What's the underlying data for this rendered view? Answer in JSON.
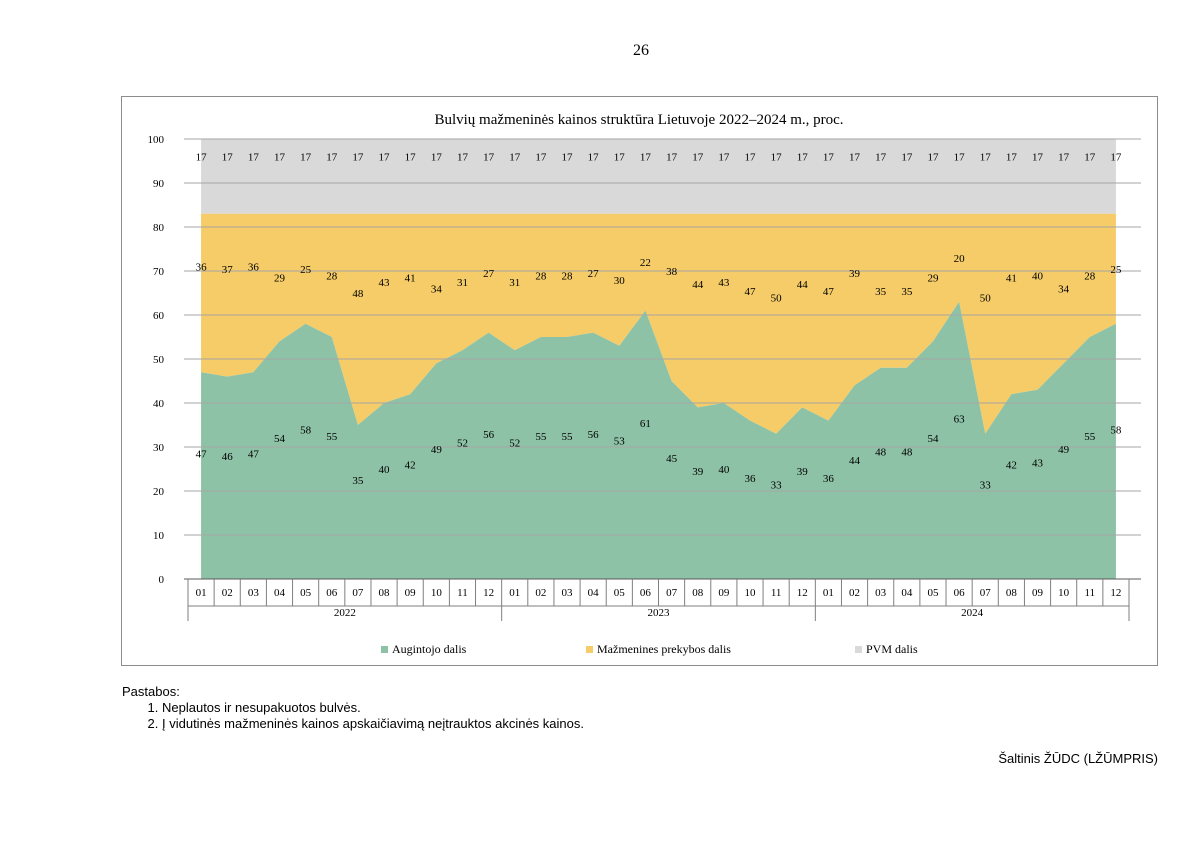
{
  "page_number": "26",
  "colors": {
    "augintojo": "#8dc2a6",
    "prekybos": "#f5cc67",
    "pvm": "#d9d9d9",
    "grid": "#a6a6a6",
    "axis": "#7f7f7f"
  },
  "chart_data": {
    "type": "area",
    "title": "Bulvių mažmeninės kainos struktūra Lietuvoje 2022–2024 m., proc.",
    "ylim": [
      0,
      100
    ],
    "yticks": [
      "0",
      "10",
      "20",
      "30",
      "40",
      "50",
      "60",
      "70",
      "80",
      "90",
      "100"
    ],
    "months": [
      "01",
      "02",
      "03",
      "04",
      "05",
      "06",
      "07",
      "08",
      "09",
      "10",
      "11",
      "12",
      "01",
      "02",
      "03",
      "04",
      "05",
      "06",
      "07",
      "08",
      "09",
      "10",
      "11",
      "12",
      "01",
      "02",
      "03",
      "04",
      "05",
      "06",
      "07",
      "08",
      "09",
      "10",
      "11",
      "12"
    ],
    "years": [
      "2022",
      "2023",
      "2024"
    ],
    "series": [
      {
        "name": "Augintojo dalis",
        "values": [
          47,
          46,
          47,
          54,
          58,
          55,
          35,
          40,
          42,
          49,
          52,
          56,
          52,
          55,
          55,
          56,
          53,
          61,
          45,
          39,
          40,
          36,
          33,
          39,
          36,
          44,
          48,
          48,
          54,
          63,
          33,
          42,
          43,
          49,
          55,
          58
        ]
      },
      {
        "name": "Mažmenines prekybos dalis",
        "values": [
          36,
          37,
          36,
          29,
          25,
          28,
          48,
          43,
          41,
          34,
          31,
          27,
          31,
          28,
          28,
          27,
          30,
          22,
          38,
          44,
          43,
          47,
          50,
          44,
          47,
          39,
          35,
          35,
          29,
          20,
          50,
          41,
          40,
          34,
          28,
          25
        ]
      },
      {
        "name": "PVM dalis",
        "values": [
          17,
          17,
          17,
          17,
          17,
          17,
          17,
          17,
          17,
          17,
          17,
          17,
          17,
          17,
          17,
          17,
          17,
          17,
          17,
          17,
          17,
          17,
          17,
          17,
          17,
          17,
          17,
          17,
          17,
          17,
          17,
          17,
          17,
          17,
          17,
          17
        ]
      }
    ]
  },
  "notes": {
    "heading": "Pastabos:",
    "items": [
      "Neplautos ir nesupakuotos bulvės.",
      "Į vidutinės mažmeninės kainos apskaičiavimą neįtrauktos akcinės kainos."
    ]
  },
  "source": "Šaltinis ŽŪDC (LŽŪMPRIS)"
}
